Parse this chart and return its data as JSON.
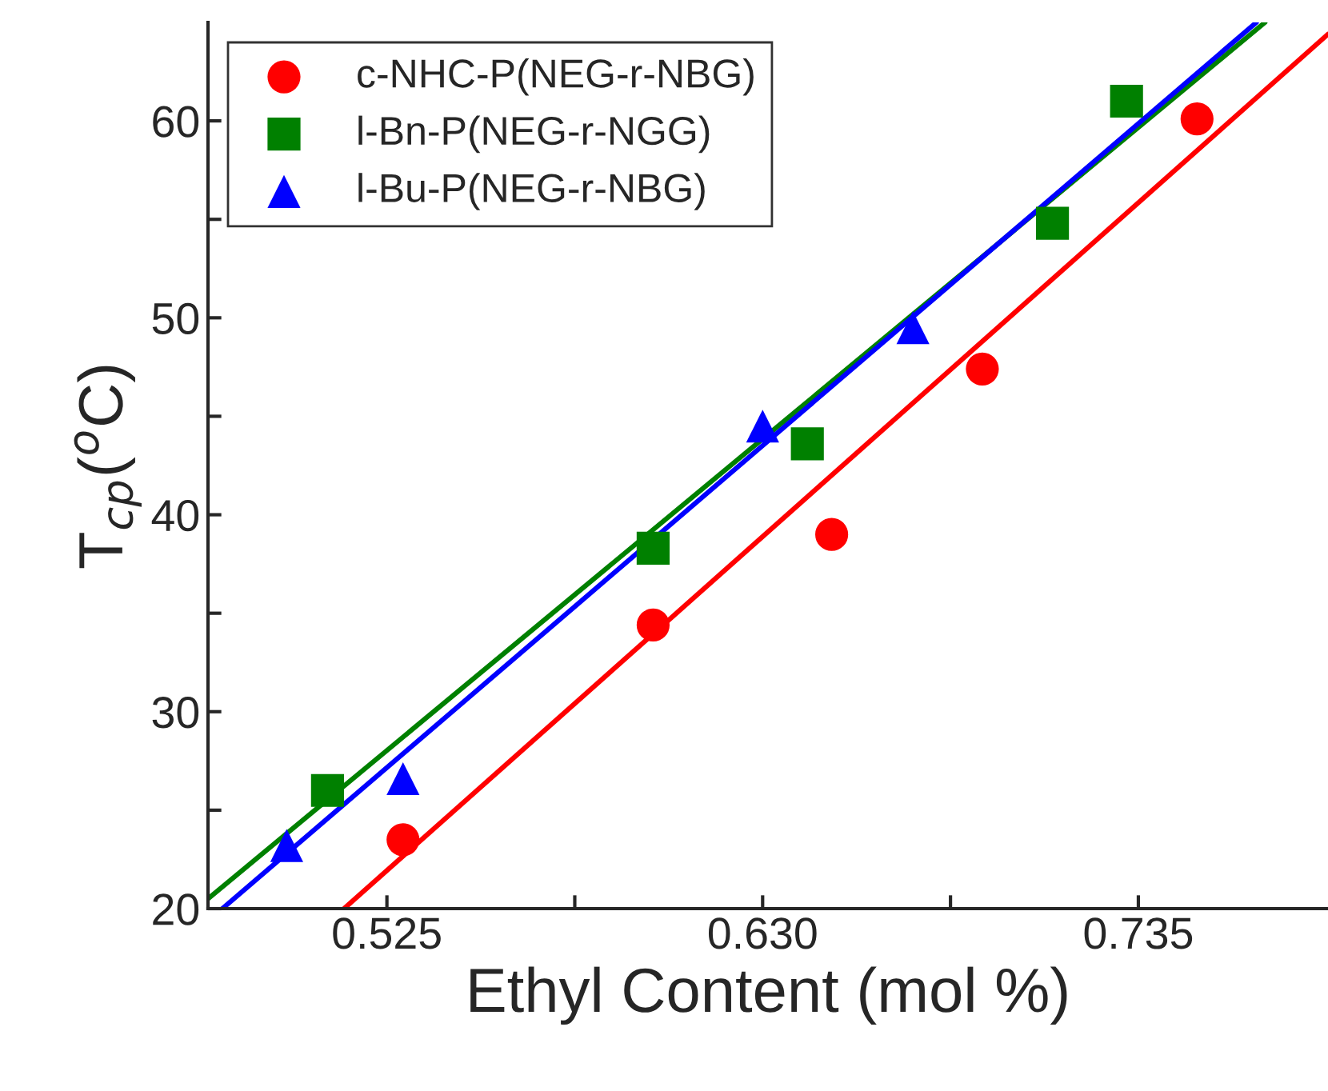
{
  "chart_data": {
    "type": "scatter",
    "xlabel": "Ethyl Content (mol %)",
    "ylabel": "T$_{cp}$($^{o}$C)",
    "xlim": [
      0.475,
      0.788
    ],
    "ylim": [
      20,
      65
    ],
    "xticks": [
      {
        "value": 0.525,
        "label": "0.525"
      },
      {
        "value": 0.5775,
        "label": null
      },
      {
        "value": 0.63,
        "label": "0.630"
      },
      {
        "value": 0.6825,
        "label": null
      },
      {
        "value": 0.735,
        "label": "0.735"
      }
    ],
    "yticks": [
      20,
      {
        "value": 25,
        "label": null
      },
      30,
      {
        "value": 35,
        "label": null
      },
      40,
      {
        "value": 45,
        "label": null
      },
      50,
      {
        "value": 55,
        "label": null
      },
      60
    ],
    "grid": false,
    "legend": "top left",
    "series": [
      {
        "name": "c-NHC-P(NEG-r-NBG)",
        "color": "#ff0000",
        "marker": "circle",
        "x": [
          0.5295,
          0.5994,
          0.6493,
          0.6914,
          0.7514
        ],
        "values": [
          23.5,
          34.4,
          39.0,
          47.4,
          60.1
        ]
      },
      {
        "name": "l-Bn-P(NEG-r-NGG)",
        "color": "#008000",
        "marker": "square",
        "x": [
          0.5084,
          0.5994,
          0.6425,
          0.711,
          0.7317
        ],
        "values": [
          26.0,
          38.3,
          43.6,
          54.8,
          61.0
        ]
      },
      {
        "name": "l-Bu-P(NEG-r-NBG)",
        "color": "#0000ff",
        "marker": "triangle",
        "x": [
          0.497,
          0.5295,
          0.63,
          0.672
        ],
        "values": [
          23.2,
          26.6,
          44.5,
          49.5
        ]
      },
      {
        "type": "line",
        "color": "#ff0000",
        "x": [
          0.513,
          0.788
        ],
        "values": [
          20,
          64.4
        ]
      },
      {
        "type": "line",
        "color": "#008000",
        "x": [
          0.475,
          0.7704
        ],
        "values": [
          20.5,
          65
        ]
      },
      {
        "type": "line",
        "color": "#0000ff",
        "x": [
          0.479,
          0.768
        ],
        "values": [
          20,
          65
        ]
      }
    ]
  }
}
